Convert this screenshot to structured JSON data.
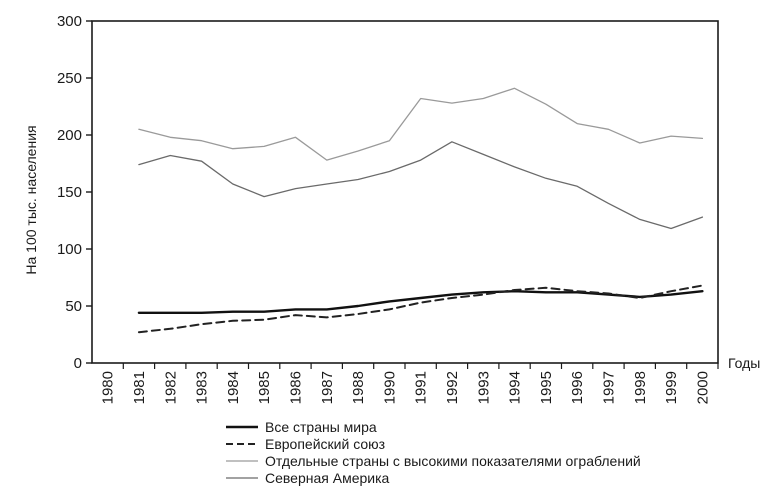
{
  "chart_data": {
    "type": "line",
    "title": "",
    "xlabel": "Годы",
    "ylabel": "На 100 тыс. населения",
    "categories": [
      "1980",
      "1981",
      "1982",
      "1983",
      "1984",
      "1985",
      "1986",
      "1987",
      "1988",
      "1990",
      "1991",
      "1992",
      "1993",
      "1994",
      "1995",
      "1996",
      "1997",
      "1998",
      "1999",
      "2000"
    ],
    "ylim": [
      0,
      300
    ],
    "yticks": [
      0,
      50,
      100,
      150,
      200,
      250,
      300
    ],
    "grid": false,
    "legend_position": "bottom",
    "series": [
      {
        "name": "Все страны мира",
        "style": "solid-bold",
        "color": "#111111",
        "values": [
          null,
          44,
          44,
          44,
          45,
          45,
          47,
          47,
          50,
          54,
          57,
          60,
          62,
          63,
          62,
          62,
          60,
          58,
          60,
          63
        ]
      },
      {
        "name": "Европейский союз",
        "style": "dashed",
        "color": "#222222",
        "values": [
          null,
          27,
          30,
          34,
          37,
          38,
          42,
          40,
          43,
          47,
          53,
          57,
          60,
          64,
          66,
          63,
          61,
          57,
          63,
          68
        ]
      },
      {
        "name": "Отдельные страны с высокими показателями ограблений",
        "style": "solid-light",
        "color": "#9a9a9a",
        "values": [
          null,
          205,
          198,
          195,
          188,
          190,
          198,
          178,
          186,
          195,
          232,
          228,
          232,
          241,
          227,
          210,
          205,
          193,
          199,
          197
        ]
      },
      {
        "name": "Северная Америка",
        "style": "solid-medium",
        "color": "#6a6a6a",
        "values": [
          null,
          174,
          182,
          177,
          157,
          146,
          153,
          157,
          161,
          168,
          178,
          194,
          183,
          172,
          162,
          155,
          140,
          126,
          118,
          128
        ]
      }
    ]
  }
}
